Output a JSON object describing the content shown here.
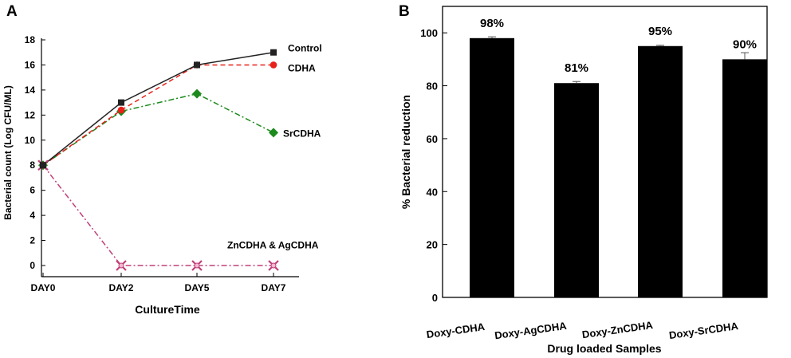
{
  "chart_data": [
    {
      "type": "line",
      "panel_label": "A",
      "title": "",
      "xlabel": "CultureTime",
      "ylabel": "Bacterial count (Log CFU/ML)",
      "categories": [
        "DAY0",
        "DAY2",
        "DAY5",
        "DAY7"
      ],
      "ylim": [
        0,
        18
      ],
      "yticks": [
        0,
        2,
        4,
        6,
        8,
        10,
        12,
        14,
        16,
        18
      ],
      "grid": false,
      "series": [
        {
          "name": "Control",
          "label": "Control",
          "values": [
            8,
            13,
            16,
            17
          ],
          "color": "#222222",
          "marker": "square",
          "dash": "solid",
          "label_at": 17.4
        },
        {
          "name": "CDHA",
          "label": "CDHA",
          "values": [
            8,
            12.4,
            16,
            16
          ],
          "color": "#e8211b",
          "marker": "circle",
          "dash": "dashed",
          "label_at": 15.8
        },
        {
          "name": "SrCDHA",
          "label": "SrCDHA",
          "values": [
            8,
            12.3,
            13.7,
            10.6
          ],
          "color": "#1c8a1c",
          "marker": "diamond",
          "dash": "dashdot",
          "label_at": 10.6
        },
        {
          "name": "ZnCDHA & AgCDHA",
          "label": "ZnCDHA & AgCDHA",
          "values": [
            8,
            0,
            0,
            0
          ],
          "color": "#c0407a",
          "marker": "star",
          "dash": "dashdot",
          "label_at": 1.7
        }
      ]
    },
    {
      "type": "bar",
      "panel_label": "B",
      "title": "",
      "xlabel": "Drug loaded Samples",
      "ylabel": "% Bacterial reduction",
      "categories": [
        "Doxy-CDHA",
        "Doxy-AgCDHA",
        "Doxy-ZnCDHA",
        "Doxy-SrCDHA"
      ],
      "values": [
        98,
        81,
        95,
        90
      ],
      "errors": [
        0.5,
        0.6,
        0.3,
        2.5
      ],
      "value_labels": [
        "98%",
        "81%",
        "95%",
        "90%"
      ],
      "ylim": [
        0,
        110
      ],
      "yticks": [
        0,
        20,
        40,
        60,
        80,
        100
      ],
      "bar_color": "#000000",
      "grid": false
    }
  ]
}
